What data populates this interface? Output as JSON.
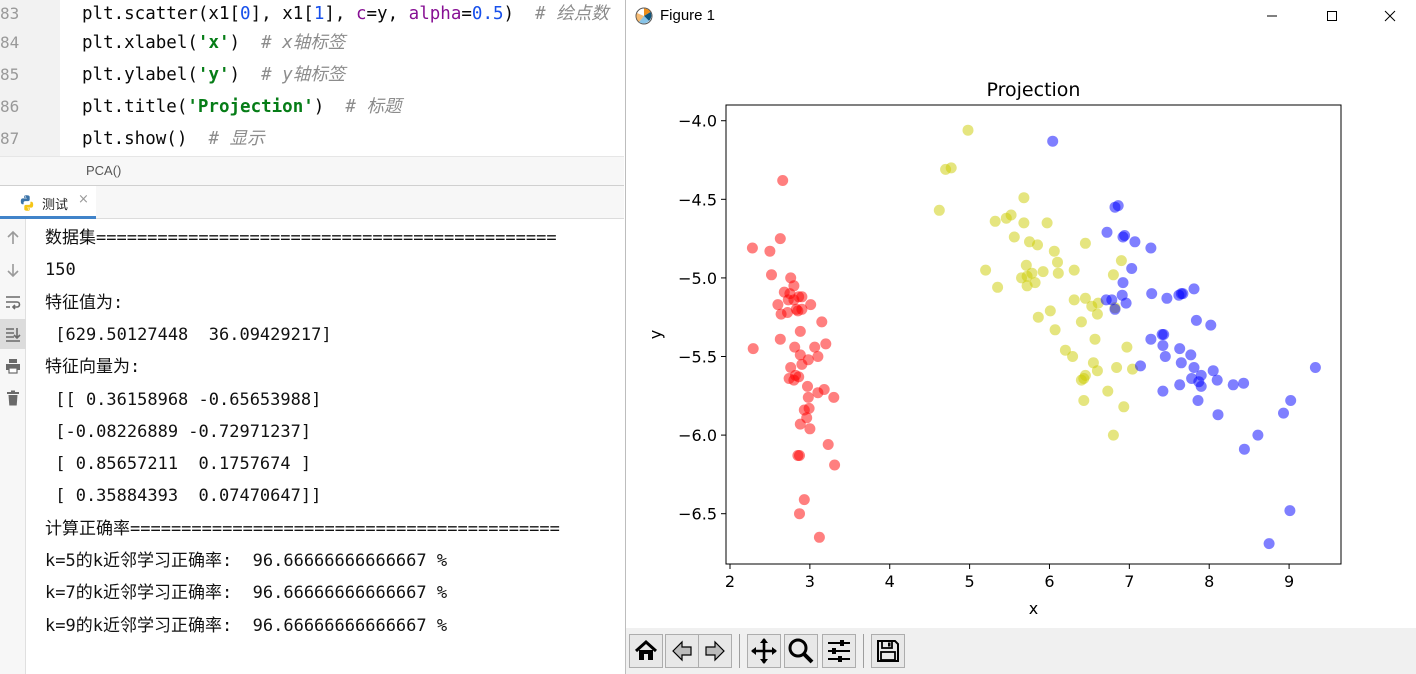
{
  "editor": {
    "lines": [
      {
        "no": "83",
        "y": -2,
        "segs": [
          [
            "plt.scatter(x1[",
            ""
          ],
          [
            "0",
            "num"
          ],
          [
            "], x1[",
            ""
          ],
          [
            "1",
            "num"
          ],
          [
            "], ",
            ""
          ],
          [
            "c",
            "kw"
          ],
          [
            "=y, ",
            ""
          ],
          [
            "alpha",
            "kw"
          ],
          [
            "=",
            ""
          ],
          [
            "0.5",
            "num"
          ],
          [
            ")  ",
            ""
          ],
          [
            "# 绘点数",
            "cm"
          ]
        ]
      },
      {
        "no": "84",
        "y": 27,
        "segs": [
          [
            "plt.xlabel(",
            ""
          ],
          [
            "'x'",
            "str"
          ],
          [
            ")  ",
            ""
          ],
          [
            "# x轴标签",
            "cm"
          ]
        ]
      },
      {
        "no": "85",
        "y": 59,
        "segs": [
          [
            "plt.ylabel(",
            ""
          ],
          [
            "'y'",
            "str"
          ],
          [
            ")  ",
            ""
          ],
          [
            "# y轴标签",
            "cm"
          ]
        ]
      },
      {
        "no": "86",
        "y": 91,
        "segs": [
          [
            "plt.title(",
            ""
          ],
          [
            "'Projection'",
            "str"
          ],
          [
            ")  ",
            ""
          ],
          [
            "# 标题",
            "cm"
          ]
        ]
      },
      {
        "no": "87",
        "y": 123,
        "segs": [
          [
            "plt.show()  ",
            ""
          ],
          [
            "# 显示",
            "cm"
          ]
        ]
      }
    ],
    "breadcrumb": "PCA()"
  },
  "run_window": {
    "tab_label": "测试",
    "tab_close": "×",
    "console_lines": [
      "数据集=============================================",
      "150",
      "特征值为:",
      " [629.50127448  36.09429217]",
      "特征向量为:",
      " [[ 0.36158968 -0.65653988]",
      " [-0.08226889 -0.72971237]",
      " [ 0.85657211  0.1757674 ]",
      " [ 0.35884393  0.07470647]]",
      "计算正确率==========================================",
      "k=5的k近邻学习正确率:  96.66666666666667 %",
      "k=7的k近邻学习正确率:  96.66666666666667 %",
      "k=9的k近邻学习正确率:  96.66666666666667 %"
    ],
    "toolbar_icons": [
      "up-arrow-icon",
      "down-arrow-icon",
      "soft-wrap-icon",
      "scroll-to-end-icon",
      "print-icon",
      "trash-icon"
    ]
  },
  "figure_window": {
    "title": "Figure 1",
    "controls": [
      "minimize-icon",
      "maximize-icon",
      "close-icon"
    ],
    "toolbar_icons": [
      "home-icon",
      "back-arrow-icon",
      "forward-arrow-icon",
      "pan-icon",
      "zoom-icon",
      "configure-subplots-icon",
      "save-icon"
    ]
  },
  "chart_data": {
    "type": "scatter",
    "title": "Projection",
    "xlabel": "x",
    "ylabel": "y",
    "xlim": [
      1.95,
      9.65
    ],
    "ylim": [
      -6.82,
      -3.9
    ],
    "xticks": [
      2,
      3,
      4,
      5,
      6,
      7,
      8,
      9
    ],
    "yticks": [
      -4.0,
      -4.5,
      -5.0,
      -5.5,
      -6.0,
      -6.5
    ],
    "ytick_labels": [
      "−4.0",
      "−4.5",
      "−5.0",
      "−5.5",
      "−6.0",
      "−6.5"
    ],
    "alpha": 0.5,
    "grid": false,
    "series": [
      {
        "color": "#ff0000",
        "points": [
          [
            2.28,
            -4.81
          ],
          [
            2.5,
            -4.83
          ],
          [
            2.63,
            -4.75
          ],
          [
            2.66,
            -4.38
          ],
          [
            2.52,
            -4.98
          ],
          [
            2.68,
            -5.09
          ],
          [
            2.75,
            -5.1
          ],
          [
            2.76,
            -5.0
          ],
          [
            2.8,
            -5.05
          ],
          [
            2.86,
            -5.12
          ],
          [
            2.9,
            -5.12
          ],
          [
            2.6,
            -5.17
          ],
          [
            2.73,
            -5.14
          ],
          [
            2.8,
            -5.14
          ],
          [
            2.83,
            -5.2
          ],
          [
            2.85,
            -5.21
          ],
          [
            3.01,
            -5.17
          ],
          [
            2.64,
            -5.23
          ],
          [
            2.72,
            -5.22
          ],
          [
            2.9,
            -5.2
          ],
          [
            3.15,
            -5.28
          ],
          [
            2.29,
            -5.45
          ],
          [
            2.63,
            -5.39
          ],
          [
            2.88,
            -5.34
          ],
          [
            2.81,
            -5.44
          ],
          [
            3.06,
            -5.44
          ],
          [
            3.2,
            -5.42
          ],
          [
            2.88,
            -5.49
          ],
          [
            3.1,
            -5.5
          ],
          [
            2.9,
            -5.55
          ],
          [
            2.98,
            -5.52
          ],
          [
            2.76,
            -5.57
          ],
          [
            2.82,
            -5.62
          ],
          [
            2.74,
            -5.64
          ],
          [
            2.8,
            -5.65
          ],
          [
            2.86,
            -5.63
          ],
          [
            2.97,
            -5.69
          ],
          [
            3.1,
            -5.73
          ],
          [
            3.18,
            -5.71
          ],
          [
            2.98,
            -5.76
          ],
          [
            3.3,
            -5.76
          ],
          [
            2.93,
            -5.84
          ],
          [
            2.99,
            -5.83
          ],
          [
            2.96,
            -5.89
          ],
          [
            2.88,
            -5.93
          ],
          [
            3.0,
            -5.96
          ],
          [
            3.23,
            -6.06
          ],
          [
            2.85,
            -6.13
          ],
          [
            2.87,
            -6.13
          ],
          [
            3.31,
            -6.19
          ],
          [
            2.93,
            -6.41
          ],
          [
            2.87,
            -6.5
          ],
          [
            3.12,
            -6.65
          ]
        ]
      },
      {
        "color": "#cccc00",
        "points": [
          [
            4.98,
            -4.06
          ],
          [
            4.7,
            -4.31
          ],
          [
            4.77,
            -4.3
          ],
          [
            4.62,
            -4.57
          ],
          [
            5.68,
            -4.49
          ],
          [
            5.52,
            -4.6
          ],
          [
            5.46,
            -4.62
          ],
          [
            5.32,
            -4.64
          ],
          [
            5.68,
            -4.65
          ],
          [
            5.97,
            -4.65
          ],
          [
            5.75,
            -4.77
          ],
          [
            5.85,
            -4.79
          ],
          [
            5.56,
            -4.74
          ],
          [
            6.06,
            -4.83
          ],
          [
            6.45,
            -4.78
          ],
          [
            5.92,
            -4.96
          ],
          [
            6.1,
            -4.9
          ],
          [
            5.71,
            -4.92
          ],
          [
            5.72,
            -4.99
          ],
          [
            5.78,
            -4.97
          ],
          [
            5.65,
            -5.0
          ],
          [
            5.2,
            -4.95
          ],
          [
            6.31,
            -4.95
          ],
          [
            6.11,
            -4.97
          ],
          [
            5.82,
            -5.03
          ],
          [
            5.72,
            -5.05
          ],
          [
            5.35,
            -5.06
          ],
          [
            6.8,
            -4.98
          ],
          [
            6.9,
            -4.89
          ],
          [
            6.31,
            -5.14
          ],
          [
            6.45,
            -5.13
          ],
          [
            6.53,
            -5.18
          ],
          [
            6.61,
            -5.16
          ],
          [
            6.01,
            -5.21
          ],
          [
            5.86,
            -5.25
          ],
          [
            6.4,
            -5.28
          ],
          [
            6.6,
            -5.23
          ],
          [
            6.07,
            -5.33
          ],
          [
            6.82,
            -5.19
          ],
          [
            6.57,
            -5.39
          ],
          [
            6.2,
            -5.46
          ],
          [
            6.29,
            -5.5
          ],
          [
            6.55,
            -5.54
          ],
          [
            6.97,
            -5.44
          ],
          [
            6.45,
            -5.62
          ],
          [
            6.4,
            -5.65
          ],
          [
            6.43,
            -5.64
          ],
          [
            6.6,
            -5.59
          ],
          [
            6.84,
            -5.57
          ],
          [
            7.04,
            -5.58
          ],
          [
            6.73,
            -5.72
          ],
          [
            6.43,
            -5.78
          ],
          [
            6.93,
            -5.82
          ],
          [
            6.8,
            -6.0
          ]
        ]
      },
      {
        "color": "#0000ff",
        "points": [
          [
            6.04,
            -4.13
          ],
          [
            6.82,
            -4.55
          ],
          [
            6.86,
            -4.54
          ],
          [
            6.92,
            -4.74
          ],
          [
            6.94,
            -4.73
          ],
          [
            6.72,
            -4.71
          ],
          [
            7.07,
            -4.77
          ],
          [
            7.27,
            -4.81
          ],
          [
            7.03,
            -4.94
          ],
          [
            6.92,
            -5.03
          ],
          [
            6.91,
            -5.11
          ],
          [
            6.71,
            -5.14
          ],
          [
            6.78,
            -5.14
          ],
          [
            6.82,
            -5.2
          ],
          [
            6.96,
            -5.16
          ],
          [
            7.28,
            -5.1
          ],
          [
            7.47,
            -5.13
          ],
          [
            7.62,
            -5.11
          ],
          [
            7.65,
            -5.1
          ],
          [
            7.67,
            -5.1
          ],
          [
            7.81,
            -5.07
          ],
          [
            7.84,
            -5.27
          ],
          [
            8.02,
            -5.3
          ],
          [
            7.43,
            -5.36
          ],
          [
            7.41,
            -5.36
          ],
          [
            7.27,
            -5.39
          ],
          [
            7.42,
            -5.43
          ],
          [
            7.45,
            -5.5
          ],
          [
            7.63,
            -5.45
          ],
          [
            7.77,
            -5.49
          ],
          [
            7.65,
            -5.54
          ],
          [
            7.81,
            -5.57
          ],
          [
            7.14,
            -5.56
          ],
          [
            8.05,
            -5.59
          ],
          [
            7.9,
            -5.62
          ],
          [
            8.1,
            -5.65
          ],
          [
            7.87,
            -5.66
          ],
          [
            7.78,
            -5.64
          ],
          [
            7.63,
            -5.68
          ],
          [
            7.9,
            -5.69
          ],
          [
            7.42,
            -5.72
          ],
          [
            8.3,
            -5.68
          ],
          [
            8.43,
            -5.67
          ],
          [
            7.86,
            -5.78
          ],
          [
            9.33,
            -5.57
          ],
          [
            9.02,
            -5.78
          ],
          [
            8.93,
            -5.86
          ],
          [
            8.11,
            -5.87
          ],
          [
            8.61,
            -6.0
          ],
          [
            8.44,
            -6.09
          ],
          [
            9.01,
            -6.48
          ],
          [
            8.75,
            -6.69
          ]
        ]
      }
    ]
  }
}
